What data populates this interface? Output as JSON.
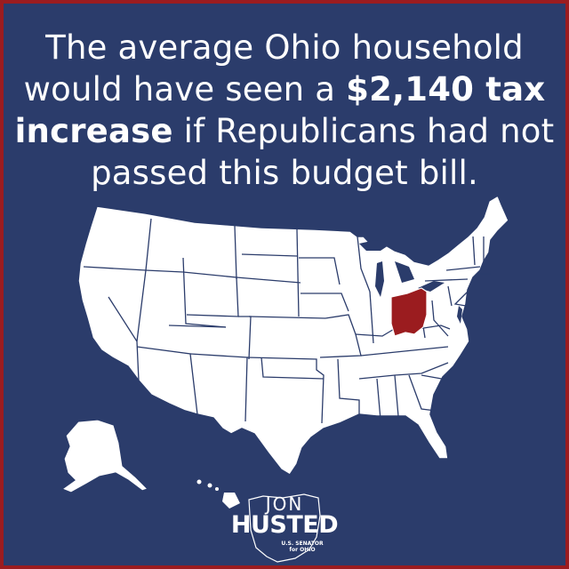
{
  "colors": {
    "border": "#9b1c1f",
    "background": "#2b3c6b",
    "map_fill": "#ffffff",
    "state_border": "#2b3c6b",
    "highlight_state": "#9b1c1f",
    "text": "#ffffff"
  },
  "headline": {
    "part1": "The average Ohio household would have seen a ",
    "amount": "$2,140 tax",
    "part2_bold": "increase",
    "part3": " if Republicans had not passed this budget bill."
  },
  "map": {
    "highlighted_state": "Ohio"
  },
  "logo": {
    "first_name": "JON",
    "last_name": "HUSTED",
    "subtitle_line1": "U.S. SENATOR",
    "subtitle_line2": "for OHIO"
  }
}
